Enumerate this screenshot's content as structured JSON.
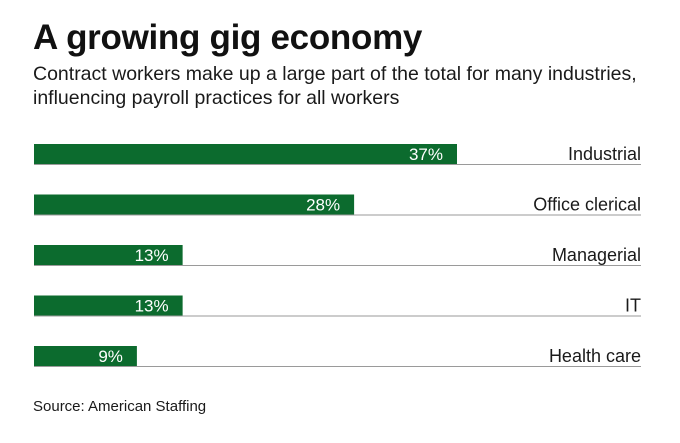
{
  "title": "A growing gig economy",
  "subtitle": "Contract workers make up a large part of the total for many industries, influencing payroll practices for all workers",
  "source": "Source: American Staffing",
  "colors": {
    "bar": "#0c6b2e",
    "baseline": "#9a9a9a",
    "label_on_bar": "#ffffff",
    "category_text": "#1a1a1a"
  },
  "chart_data": {
    "type": "bar",
    "orientation": "horizontal",
    "categories": [
      "Industrial",
      "Office clerical",
      "Managerial",
      "IT",
      "Health care"
    ],
    "values": [
      37,
      28,
      13,
      13,
      9
    ],
    "value_labels": [
      "37%",
      "28%",
      "13%",
      "13%",
      "9%"
    ],
    "unit": "%",
    "xlim": [
      0,
      37
    ],
    "grid": false,
    "legend": "none"
  }
}
